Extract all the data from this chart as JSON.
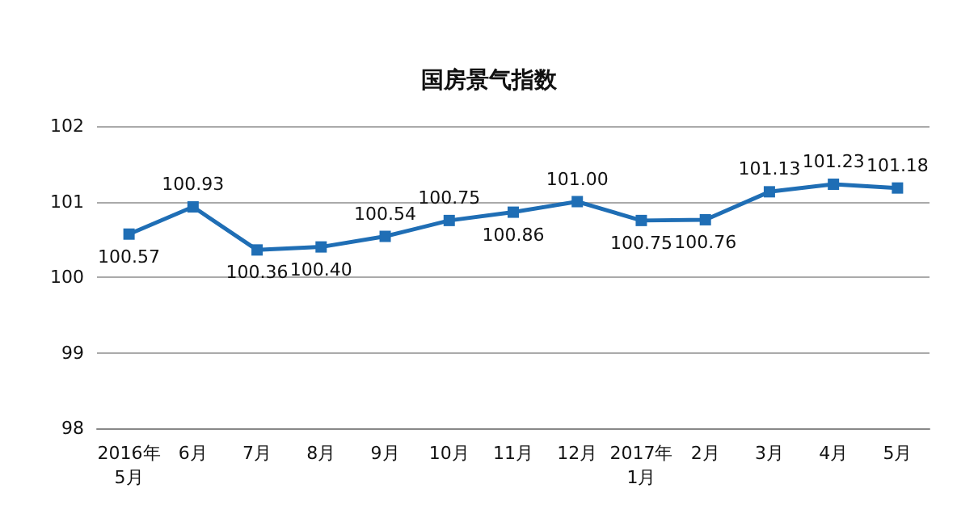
{
  "chart_data": {
    "type": "line",
    "title": "国房景气指数",
    "categories": [
      "2016年\n5月",
      "6月",
      "7月",
      "8月",
      "9月",
      "10月",
      "11月",
      "12月",
      "2017年\n1月",
      "2月",
      "3月",
      "4月",
      "5月"
    ],
    "series": [
      {
        "color": "#1f6eb5",
        "values": [
          100.57,
          100.93,
          100.36,
          100.4,
          100.54,
          100.75,
          100.86,
          101.0,
          100.75,
          100.76,
          101.13,
          101.23,
          101.18
        ],
        "value_labels": [
          "100.57",
          "100.93",
          "100.36",
          "100.40",
          "100.54",
          "100.75",
          "100.86",
          "101.00",
          "100.75",
          "100.76",
          "101.13",
          "101.23",
          "101.18"
        ]
      }
    ],
    "ylim": [
      98,
      102
    ],
    "yticks": [
      98,
      99,
      100,
      101,
      102
    ],
    "grid": "y",
    "marker": "square",
    "line_style": "solid"
  }
}
